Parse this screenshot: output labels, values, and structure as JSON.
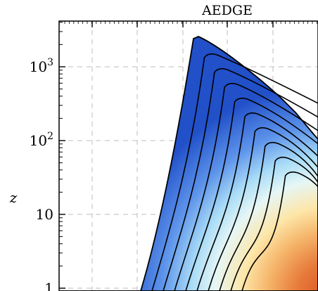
{
  "chart_data": {
    "type": "contour",
    "title": "AEDGE",
    "ylabel": "z",
    "xlabel": "",
    "yscale": "log",
    "ylim": [
      1,
      3500
    ],
    "grid": true,
    "y_ticks": [
      {
        "value": 1,
        "base": "1",
        "exp": ""
      },
      {
        "value": 10,
        "base": "10",
        "exp": ""
      },
      {
        "value": 100,
        "base": "10",
        "exp": "2"
      },
      {
        "value": 1000,
        "base": "10",
        "exp": "3"
      }
    ],
    "colors": {
      "low": "#1f4fc8",
      "mid_low": "#cfeffc",
      "mid": "#fff3bf",
      "high": "#e0662a",
      "contour_line": "#000000"
    }
  }
}
